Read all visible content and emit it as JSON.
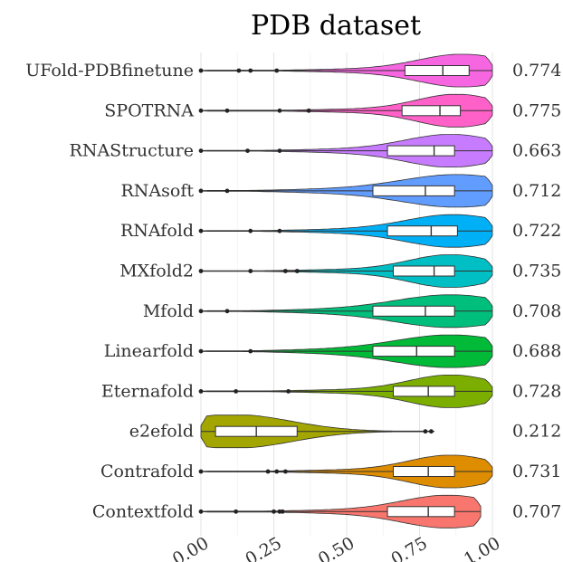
{
  "chart_data": {
    "type": "violin",
    "title": "PDB dataset",
    "xlim": [
      0.0,
      1.0
    ],
    "x_ticks": [
      "0.00",
      "0.25",
      "0.50",
      "0.75",
      "1.00"
    ],
    "grid": true,
    "legend": "none",
    "categories": [
      "UFold-PDBfinetune",
      "SPOTRNA",
      "RNAStructure",
      "RNAsoft",
      "RNAfold",
      "MXfold2",
      "Mfold",
      "Linearfold",
      "Eternafold",
      "e2efold",
      "Contrafold",
      "Contextfold"
    ],
    "series": [
      {
        "name": "UFold-PDBfinetune",
        "mean": "0.774",
        "color": "#F766E1",
        "box": [
          0.7,
          0.83,
          0.92
        ],
        "range": [
          0.0,
          1.0
        ],
        "mode": 0.9,
        "outliers": [
          0.0,
          0.13,
          0.17,
          0.26
        ]
      },
      {
        "name": "SPOTRNA",
        "mean": "0.775",
        "color": "#FF61C9",
        "box": [
          0.69,
          0.82,
          0.89
        ],
        "range": [
          0.0,
          1.0
        ],
        "mode": 0.88,
        "outliers": [
          0.0,
          0.09,
          0.27,
          0.37
        ]
      },
      {
        "name": "RNAStructure",
        "mean": "0.663",
        "color": "#C77CFF",
        "box": [
          0.64,
          0.8,
          0.87
        ],
        "range": [
          0.0,
          1.0
        ],
        "mode": 0.86,
        "outliers": [
          0.0,
          0.16,
          0.27
        ]
      },
      {
        "name": "RNAsoft",
        "mean": "0.712",
        "color": "#619CFF",
        "box": [
          0.59,
          0.77,
          0.87
        ],
        "range": [
          0.0,
          1.0
        ],
        "mode": 0.88,
        "outliers": [
          0.0,
          0.09
        ]
      },
      {
        "name": "RNAfold",
        "mean": "0.722",
        "color": "#00B0F6",
        "box": [
          0.64,
          0.79,
          0.88
        ],
        "range": [
          0.0,
          1.0
        ],
        "mode": 0.87,
        "outliers": [
          0.0,
          0.17,
          0.27
        ]
      },
      {
        "name": "MXfold2",
        "mean": "0.735",
        "color": "#00BFC4",
        "box": [
          0.66,
          0.8,
          0.87
        ],
        "range": [
          0.0,
          1.0
        ],
        "mode": 0.86,
        "outliers": [
          0.0,
          0.17,
          0.29,
          0.33
        ]
      },
      {
        "name": "Mfold",
        "mean": "0.708",
        "color": "#00BF7D",
        "box": [
          0.59,
          0.77,
          0.87
        ],
        "range": [
          0.0,
          1.0
        ],
        "mode": 0.86,
        "outliers": [
          0.0,
          0.09
        ]
      },
      {
        "name": "Linearfold",
        "mean": "0.688",
        "color": "#00BA38",
        "box": [
          0.59,
          0.74,
          0.87
        ],
        "range": [
          0.0,
          1.0
        ],
        "mode": 0.86,
        "outliers": [
          0.0,
          0.17
        ]
      },
      {
        "name": "Eternafold",
        "mean": "0.728",
        "color": "#7CAE00",
        "box": [
          0.66,
          0.78,
          0.87
        ],
        "range": [
          0.0,
          1.0
        ],
        "mode": 0.86,
        "outliers": [
          0.0,
          0.12,
          0.3
        ]
      },
      {
        "name": "e2efold",
        "mean": "0.212",
        "color": "#A3A500",
        "box": [
          0.05,
          0.19,
          0.33
        ],
        "range": [
          0.0,
          0.8
        ],
        "mode": 0.12,
        "outliers": [
          0.77,
          0.79
        ]
      },
      {
        "name": "Contrafold",
        "mean": "0.731",
        "color": "#DE8C00",
        "box": [
          0.66,
          0.78,
          0.87
        ],
        "range": [
          0.0,
          1.0
        ],
        "mode": 0.86,
        "outliers": [
          0.0,
          0.23,
          0.26,
          0.29
        ]
      },
      {
        "name": "Contextfold",
        "mean": "0.707",
        "color": "#F8766D",
        "box": [
          0.64,
          0.78,
          0.87
        ],
        "range": [
          0.0,
          0.96
        ],
        "mode": 0.85,
        "outliers": [
          0.0,
          0.12,
          0.25,
          0.27,
          0.28
        ]
      }
    ]
  }
}
